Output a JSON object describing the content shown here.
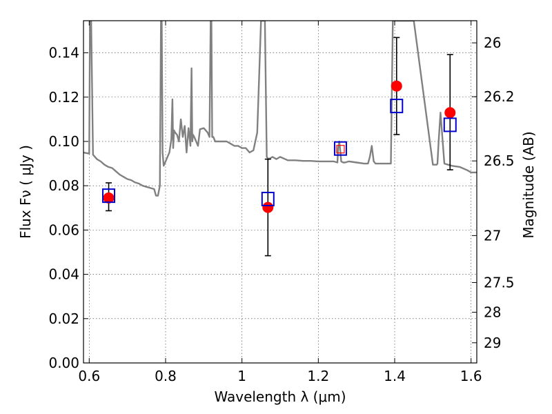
{
  "chart_data": {
    "type": "scatter",
    "title": "",
    "xlabel": "Wavelength  λ (μm)",
    "ylabel_left": "Flux  Fν  ( μJy )",
    "ylabel_right": "Magnitude (AB)",
    "xlim": [
      0.585,
      1.615
    ],
    "ylim": [
      0,
      0.1545
    ],
    "x_ticks": [
      0.6,
      0.8,
      1.0,
      1.2,
      1.4,
      1.6
    ],
    "x_tick_labels": [
      "0.6",
      "0.8",
      "1",
      "1.2",
      "1.4",
      "1.6"
    ],
    "y_ticks": [
      0.0,
      0.02,
      0.04,
      0.06,
      0.08,
      0.1,
      0.12,
      0.14
    ],
    "y_tick_labels": [
      "0.00",
      "0.02",
      "0.04",
      "0.06",
      "0.08",
      "0.10",
      "0.12",
      "0.14"
    ],
    "right_ticks": [
      {
        "flux": 0.1445,
        "label": "26"
      },
      {
        "flux": 0.1202,
        "label": "26.2"
      },
      {
        "flux": 0.0912,
        "label": "26.5"
      },
      {
        "flux": 0.0575,
        "label": "27"
      },
      {
        "flux": 0.0363,
        "label": "27.5"
      },
      {
        "flux": 0.0229,
        "label": "28"
      },
      {
        "flux": 0.0091,
        "label": "29"
      }
    ],
    "grid": true,
    "series": [
      {
        "kind": "model-spectrum",
        "color": "#808080",
        "x": [
          0.585,
          0.6,
          0.602,
          0.605,
          0.61,
          0.62,
          0.63,
          0.64,
          0.65,
          0.66,
          0.67,
          0.68,
          0.69,
          0.7,
          0.71,
          0.72,
          0.73,
          0.74,
          0.75,
          0.76,
          0.77,
          0.775,
          0.78,
          0.785,
          0.788,
          0.79,
          0.792,
          0.795,
          0.8,
          0.805,
          0.81,
          0.815,
          0.818,
          0.82,
          0.822,
          0.825,
          0.83,
          0.835,
          0.84,
          0.845,
          0.85,
          0.855,
          0.86,
          0.865,
          0.868,
          0.87,
          0.872,
          0.875,
          0.88,
          0.885,
          0.89,
          0.9,
          0.91,
          0.915,
          0.918,
          0.92,
          0.922,
          0.925,
          0.93,
          0.94,
          0.95,
          0.96,
          0.97,
          0.98,
          0.99,
          1.0,
          1.01,
          1.02,
          1.03,
          1.04,
          1.05,
          1.06,
          1.065,
          1.07,
          1.08,
          1.09,
          1.1,
          1.12,
          1.14,
          1.16,
          1.18,
          1.2,
          1.22,
          1.24,
          1.25,
          1.252,
          1.255,
          1.258,
          1.26,
          1.265,
          1.27,
          1.28,
          1.3,
          1.32,
          1.33,
          1.335,
          1.34,
          1.345,
          1.35,
          1.36,
          1.38,
          1.39,
          1.395,
          1.4,
          1.405,
          1.41,
          1.42,
          1.43,
          1.44,
          1.45,
          1.5,
          1.51,
          1.512,
          1.515,
          1.52,
          1.53,
          1.55,
          1.57,
          1.59,
          1.6,
          1.615
        ],
        "y": [
          0.095,
          0.0945,
          0.1545,
          0.1545,
          0.094,
          0.092,
          0.091,
          0.0895,
          0.0885,
          0.088,
          0.0865,
          0.085,
          0.084,
          0.083,
          0.0825,
          0.0815,
          0.081,
          0.08,
          0.0795,
          0.079,
          0.0785,
          0.0755,
          0.0755,
          0.08,
          0.1545,
          0.1545,
          0.095,
          0.089,
          0.091,
          0.093,
          0.095,
          0.101,
          0.119,
          0.097,
          0.105,
          0.104,
          0.103,
          0.1,
          0.11,
          0.102,
          0.107,
          0.095,
          0.106,
          0.098,
          0.133,
          0.1,
          0.103,
          0.102,
          0.1,
          0.098,
          0.1055,
          0.106,
          0.104,
          0.102,
          0.1545,
          0.1545,
          0.102,
          0.102,
          0.1,
          0.1,
          0.1,
          0.1,
          0.099,
          0.098,
          0.098,
          0.097,
          0.097,
          0.095,
          0.096,
          0.104,
          0.1545,
          0.1545,
          0.093,
          0.092,
          0.093,
          0.092,
          0.093,
          0.0915,
          0.0915,
          0.0912,
          0.0912,
          0.091,
          0.091,
          0.091,
          0.0905,
          0.097,
          0.1,
          0.095,
          0.091,
          0.0905,
          0.0905,
          0.091,
          0.0905,
          0.09,
          0.09,
          0.093,
          0.098,
          0.091,
          0.09,
          0.09,
          0.09,
          0.09,
          0.1545,
          0.1545,
          0.1545,
          0.1545,
          0.1545,
          0.1545,
          0.1545,
          0.1545,
          0.0895,
          0.0895,
          0.09,
          0.1,
          0.113,
          0.09,
          0.089,
          0.0885,
          0.087,
          0.086,
          0.086
        ]
      },
      {
        "kind": "observed",
        "marker": "circle",
        "color": "#ff0000",
        "points": [
          {
            "x": 0.651,
            "y": 0.0745,
            "yerr_low": 0.0058,
            "yerr_high": 0.0068
          },
          {
            "x": 1.068,
            "y": 0.0702,
            "yerr_low": 0.0218,
            "yerr_high": 0.0218
          },
          {
            "x": 1.405,
            "y": 0.125,
            "yerr_low": 0.0219,
            "yerr_high": 0.0219
          },
          {
            "x": 1.545,
            "y": 0.113,
            "yerr_low": 0.0258,
            "yerr_high": 0.0262
          }
        ]
      },
      {
        "kind": "model-photometry",
        "marker": "square",
        "color": "#0000cc",
        "points": [
          {
            "x": 0.651,
            "y": 0.0755
          },
          {
            "x": 1.068,
            "y": 0.074
          },
          {
            "x": 1.258,
            "y": 0.0968
          },
          {
            "x": 1.405,
            "y": 0.116
          },
          {
            "x": 1.545,
            "y": 0.1075
          }
        ]
      },
      {
        "kind": "highlight",
        "marker": "square-small",
        "color": "#ff0000",
        "points": [
          {
            "x": 1.258,
            "y": 0.0965
          }
        ]
      }
    ]
  }
}
